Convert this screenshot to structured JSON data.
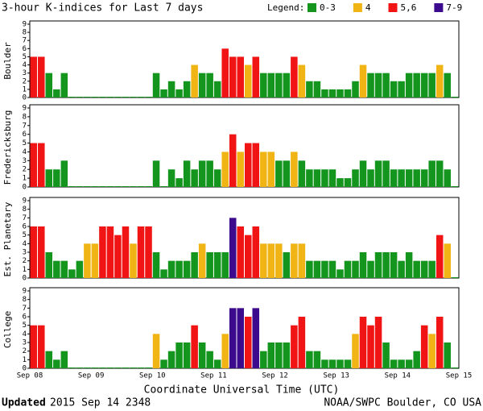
{
  "header": {
    "title": "3-hour K-indices for Last 7 days",
    "legend_title": "Legend:",
    "legend": [
      {
        "label": "0-3",
        "color": "#14961e",
        "levels": [
          0,
          1,
          2,
          3
        ]
      },
      {
        "label": "4",
        "color": "#f0b414",
        "levels": [
          4
        ]
      },
      {
        "label": "5,6",
        "color": "#f01414",
        "levels": [
          5,
          6
        ]
      },
      {
        "label": "7-9",
        "color": "#3c0a8c",
        "levels": [
          7,
          8,
          9
        ]
      }
    ]
  },
  "chart_data": [
    {
      "type": "bar",
      "ylabel": "Boulder",
      "ylim": [
        0,
        9
      ],
      "yticks": [
        0,
        1,
        2,
        3,
        4,
        5,
        6,
        7,
        8,
        9
      ],
      "values": [
        5,
        5,
        3,
        1,
        3,
        0,
        0,
        0,
        0,
        0,
        0,
        0,
        0,
        0,
        0,
        0,
        3,
        1,
        2,
        1,
        2,
        4,
        3,
        3,
        2,
        6,
        5,
        5,
        4,
        5,
        3,
        3,
        3,
        3,
        5,
        4,
        2,
        2,
        1,
        1,
        1,
        1,
        2,
        4,
        3,
        3,
        3,
        2,
        2,
        3,
        3,
        3,
        3,
        4,
        3,
        0
      ]
    },
    {
      "type": "bar",
      "ylabel": "Fredericksburg",
      "ylim": [
        0,
        9
      ],
      "yticks": [
        0,
        1,
        2,
        3,
        4,
        5,
        6,
        7,
        8,
        9
      ],
      "values": [
        5,
        5,
        2,
        2,
        3,
        0,
        0,
        0,
        0,
        0,
        0,
        0,
        0,
        0,
        0,
        0,
        3,
        0,
        2,
        1,
        3,
        2,
        3,
        3,
        2,
        4,
        6,
        4,
        5,
        5,
        4,
        4,
        3,
        3,
        4,
        3,
        2,
        2,
        2,
        2,
        1,
        1,
        2,
        3,
        2,
        3,
        3,
        2,
        2,
        2,
        2,
        2,
        3,
        3,
        2,
        0
      ]
    },
    {
      "type": "bar",
      "ylabel": "Est. Planetary",
      "ylim": [
        0,
        9
      ],
      "yticks": [
        0,
        1,
        2,
        3,
        4,
        5,
        6,
        7,
        8,
        9
      ],
      "values": [
        6,
        6,
        3,
        2,
        2,
        1,
        2,
        4,
        4,
        6,
        6,
        5,
        6,
        4,
        6,
        6,
        3,
        1,
        2,
        2,
        2,
        3,
        4,
        3,
        3,
        3,
        7,
        6,
        5,
        6,
        4,
        4,
        4,
        3,
        4,
        4,
        2,
        2,
        2,
        2,
        1,
        2,
        2,
        3,
        2,
        3,
        3,
        3,
        2,
        3,
        2,
        2,
        2,
        5,
        4,
        0
      ]
    },
    {
      "type": "bar",
      "ylabel": "College",
      "ylim": [
        0,
        9
      ],
      "yticks": [
        0,
        1,
        2,
        3,
        4,
        5,
        6,
        7,
        8,
        9
      ],
      "values": [
        5,
        5,
        2,
        1,
        2,
        0,
        0,
        0,
        0,
        0,
        0,
        0,
        0,
        0,
        0,
        0,
        4,
        1,
        2,
        3,
        3,
        5,
        3,
        2,
        1,
        4,
        7,
        7,
        6,
        7,
        2,
        3,
        3,
        3,
        5,
        6,
        2,
        2,
        1,
        1,
        1,
        1,
        4,
        6,
        5,
        6,
        3,
        1,
        1,
        1,
        2,
        5,
        4,
        6,
        3,
        0
      ]
    }
  ],
  "x_axis": {
    "labels": [
      "Sep 08",
      "Sep 09",
      "Sep 10",
      "Sep 11",
      "Sep 12",
      "Sep 13",
      "Sep 14",
      "Sep 15"
    ],
    "title": "Coordinate Universal Time (UTC)"
  },
  "footer": {
    "updated_label": "Updated",
    "updated": "2015 Sep 14 2348",
    "source": "NOAA/SWPC Boulder, CO USA"
  }
}
